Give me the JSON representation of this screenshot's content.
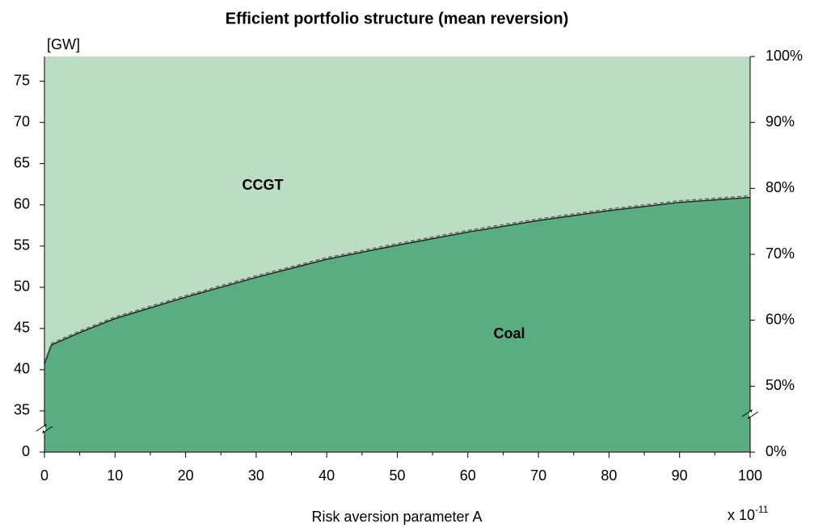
{
  "chart_data": {
    "type": "stacked-area",
    "title": "Efficient portfolio structure (mean reversion)",
    "ylabel": "[GW]",
    "xlabel": "Risk aversion parameter A",
    "xscale_label": "x 10",
    "xscale_exponent": "-11",
    "x": [
      0,
      1,
      5,
      10,
      20,
      30,
      40,
      50,
      60,
      70,
      80,
      90,
      100
    ],
    "series": [
      {
        "name": "Coal",
        "color": "#5aad80",
        "label_color": "#ffffff",
        "values": [
          40.7,
          43,
          44.5,
          46.2,
          48.8,
          51.2,
          53.4,
          55.1,
          56.7,
          58.1,
          59.3,
          60.3,
          60.9
        ]
      },
      {
        "name": "CCGT",
        "color": "#bbdec3",
        "label_color": "#000000",
        "values": [
          37.3,
          35,
          33.5,
          31.8,
          29.2,
          26.8,
          24.6,
          22.9,
          21.3,
          19.9,
          18.7,
          17.7,
          17.1
        ]
      }
    ],
    "reference_line": {
      "style": "dashed",
      "color": "#666666",
      "values": [
        40.9,
        43.2,
        44.7,
        46.4,
        49,
        51.4,
        53.6,
        55.3,
        56.9,
        58.3,
        59.5,
        60.5,
        61.1
      ]
    },
    "xlim": [
      0,
      100
    ],
    "xticks": [
      0,
      10,
      20,
      30,
      40,
      50,
      60,
      70,
      80,
      90,
      100
    ],
    "xminor_ticks": [
      5,
      15,
      25,
      35,
      45,
      55,
      65,
      75,
      85,
      95
    ],
    "ylim": [
      0,
      78
    ],
    "y_break": [
      0,
      30
    ],
    "yticks": [
      0,
      35,
      40,
      45,
      50,
      55,
      60,
      65,
      70,
      75
    ],
    "y2lim": [
      0,
      100
    ],
    "y2_break": [
      0,
      40
    ],
    "y2ticks": [
      {
        "value": 0,
        "label": "0%"
      },
      {
        "value": 50,
        "label": "50%"
      },
      {
        "value": 60,
        "label": "60%"
      },
      {
        "value": 70,
        "label": "70%"
      },
      {
        "value": 80,
        "label": "80%"
      },
      {
        "value": 90,
        "label": "90%"
      },
      {
        "value": 100,
        "label": "100%"
      }
    ]
  }
}
